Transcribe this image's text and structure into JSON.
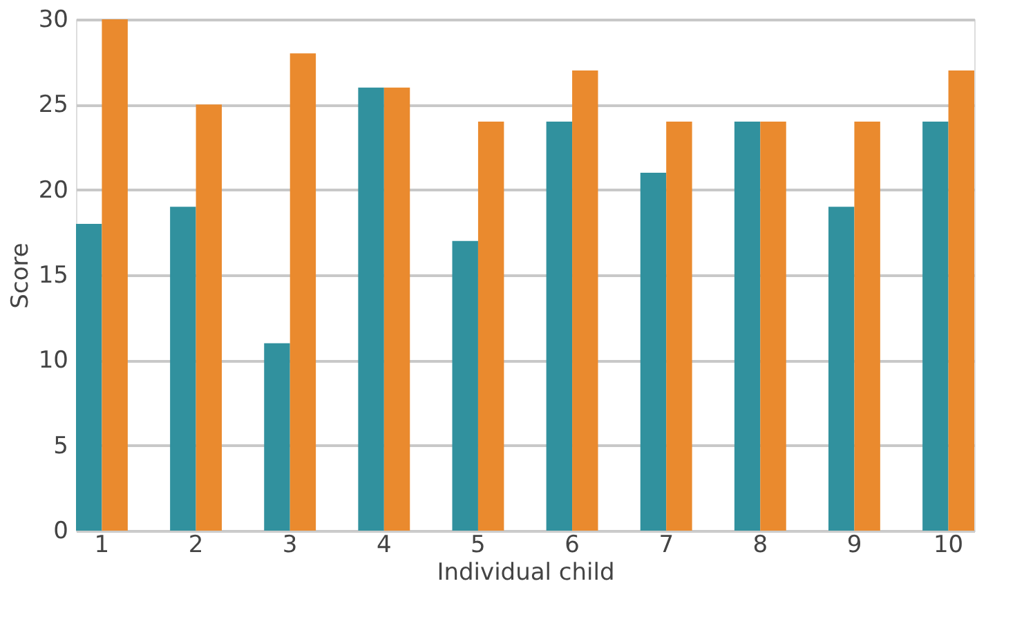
{
  "chart_data": {
    "type": "bar",
    "xlabel": "Individual child",
    "ylabel": "Score",
    "categories": [
      "1",
      "2",
      "3",
      "4",
      "5",
      "6",
      "7",
      "8",
      "9",
      "10"
    ],
    "series": [
      {
        "color": "#31919e",
        "values": [
          18,
          19,
          11,
          26,
          17,
          24,
          21,
          24,
          19,
          24
        ]
      },
      {
        "color": "#ea8a2e",
        "values": [
          30,
          25,
          28,
          26,
          24,
          27,
          24,
          24,
          24,
          27
        ]
      }
    ],
    "ylim": [
      0,
      30
    ],
    "yticks": [
      0,
      5,
      10,
      15,
      20,
      25,
      30
    ],
    "grid": "y"
  }
}
